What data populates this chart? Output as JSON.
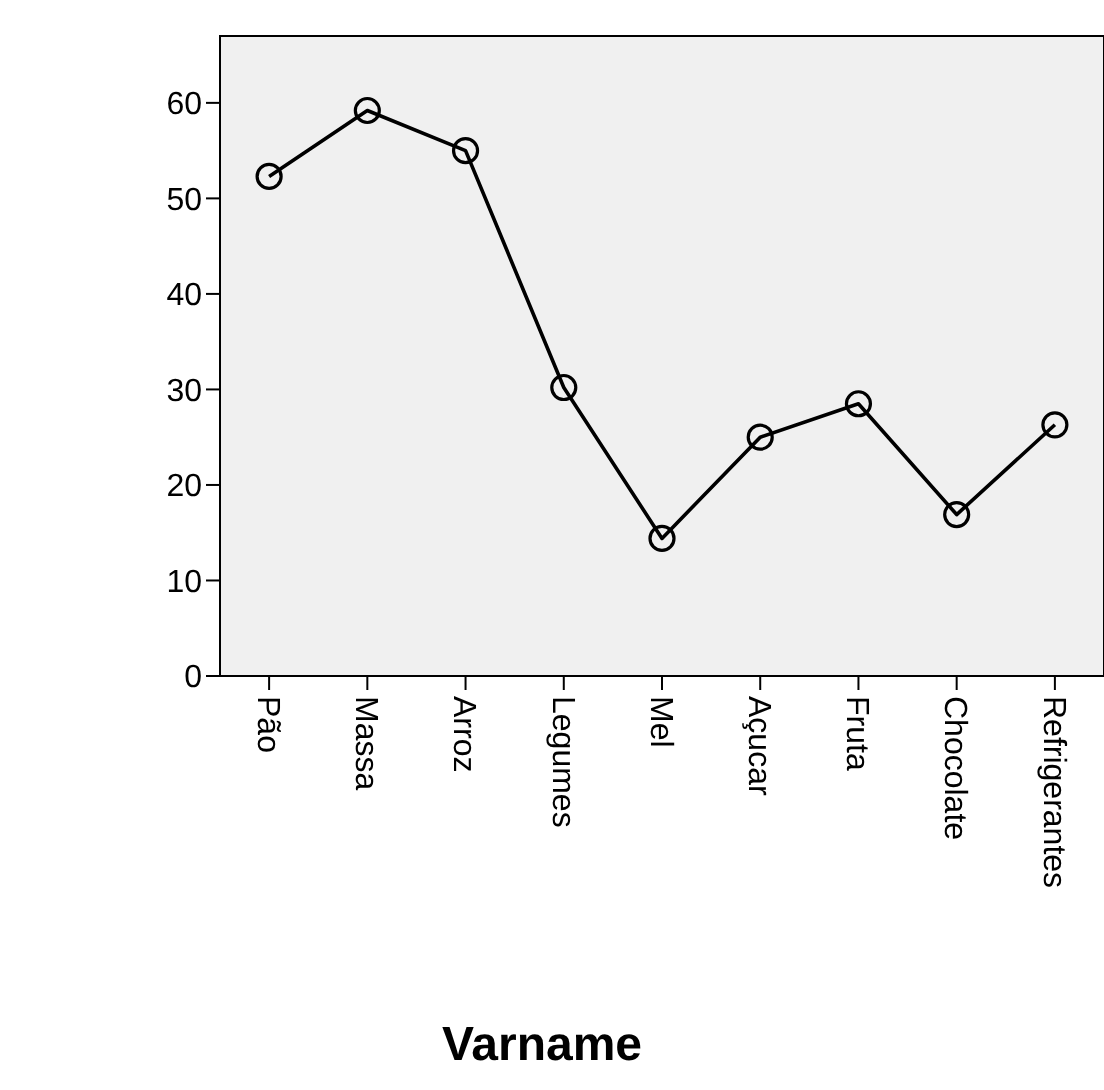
{
  "chart_data": {
    "type": "line",
    "xlabel": "Varname",
    "categories": [
      "Pão",
      "Massa",
      "Arroz",
      "Legumes",
      "Mel",
      "Açucar",
      "Fruta",
      "Chocolate",
      "Refrigerantes"
    ],
    "series": [
      {
        "color": "#000000",
        "values": [
          52.3,
          59.2,
          55,
          30.2,
          14.4,
          25,
          28.5,
          16.9,
          26.3
        ]
      }
    ],
    "ylim": [
      0,
      67
    ],
    "yticks": [
      0,
      10,
      20,
      30,
      40,
      50,
      60
    ],
    "marker": "circle",
    "line_style": "solid"
  }
}
